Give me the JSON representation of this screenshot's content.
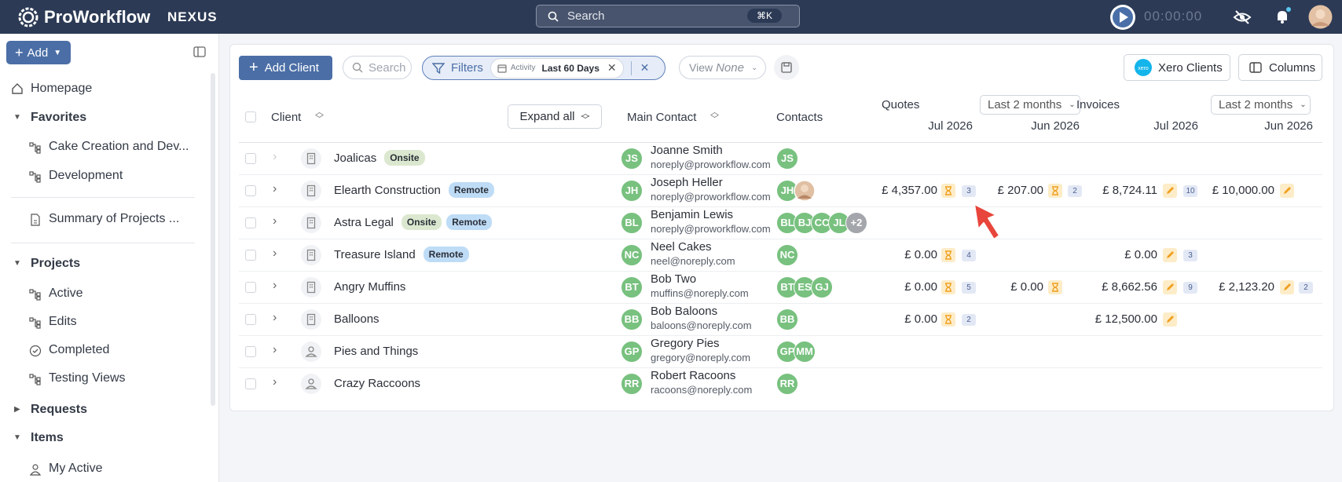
{
  "topbar": {
    "brand": "ProWorkflow",
    "product": "NEXUS",
    "search": "Search",
    "shortcut": "⌘K",
    "timer": "00:00:00"
  },
  "sidebar": {
    "add": "Add",
    "homepage": "Homepage",
    "favorites": "Favorites",
    "favorite_items": [
      "Cake Creation and Dev...",
      "Development"
    ],
    "report": "Summary of Projects ...",
    "projects": "Projects",
    "project_items": [
      "Active",
      "Edits",
      "Completed",
      "Testing Views"
    ],
    "requests": "Requests",
    "items": "Items",
    "item_items": [
      "My Active"
    ]
  },
  "toolbar": {
    "add_client": "Add Client",
    "search": "Search",
    "filters": "Filters",
    "filter_field": "Activity",
    "filter_value": "Last 60 Days",
    "view_label": "View",
    "view_value": "None",
    "xero": "Xero Clients",
    "columns": "Columns"
  },
  "table": {
    "headers": {
      "client": "Client",
      "expand": "Expand all",
      "main_contact": "Main Contact",
      "contacts": "Contacts",
      "quotes": "Quotes",
      "quotes_range": "Last 2 months",
      "invoices": "Invoices",
      "invoices_range": "Last 2 months",
      "months": [
        "Jul 2026",
        "Jun 2026",
        "Jul 2026",
        "Jun 2026"
      ]
    },
    "rows": [
      {
        "name": "Joalicas",
        "icon": "building",
        "tags": [
          "Onsite"
        ],
        "initials": "JS",
        "contact": "Joanne Smith",
        "email": "noreply@proworkflow.com",
        "contacts": [
          "JS"
        ],
        "quotes": [
          null,
          null
        ],
        "invoices": [
          null,
          null
        ]
      },
      {
        "name": "Elearth Construction",
        "icon": "building",
        "tags": [
          "Remote"
        ],
        "initials": "JH",
        "contact": "Joseph Heller",
        "email": "noreply@proworkflow.com",
        "contacts": [
          "JH"
        ],
        "quotes": [
          {
            "amount": "£ 4,357.00",
            "count": 3
          },
          {
            "amount": "£ 207.00",
            "count": 2
          }
        ],
        "invoices": [
          {
            "amount": "£ 8,724.11",
            "count": 10
          },
          {
            "amount": "£ 10,000.00"
          }
        ]
      },
      {
        "name": "Astra Legal",
        "icon": "building",
        "tags": [
          "Onsite",
          "Remote"
        ],
        "initials": "BL",
        "contact": "Benjamin Lewis",
        "email": "noreply@proworkflow.com",
        "contacts": [
          "BL",
          "BJ",
          "CC",
          "JL"
        ],
        "more": "+2",
        "quotes": [
          null,
          null
        ],
        "invoices": [
          null,
          null
        ]
      },
      {
        "name": "Treasure Island",
        "icon": "building",
        "tags": [
          "Remote"
        ],
        "initials": "NC",
        "contact": "Neel Cakes",
        "email": "neel@noreply.com",
        "contacts": [
          "NC"
        ],
        "quotes": [
          {
            "amount": "£ 0.00",
            "count": 4
          },
          null
        ],
        "invoices": [
          {
            "amount": "£ 0.00",
            "count": 3
          },
          null
        ]
      },
      {
        "name": "Angry Muffins",
        "icon": "building",
        "tags": [],
        "initials": "BT",
        "contact": "Bob Two",
        "email": "muffins@noreply.com",
        "contacts": [
          "BT",
          "ES",
          "GJ"
        ],
        "quotes": [
          {
            "amount": "£ 0.00",
            "count": 5
          },
          {
            "amount": "£ 0.00"
          }
        ],
        "invoices": [
          {
            "amount": "£ 8,662.56",
            "count": 9
          },
          {
            "amount": "£ 2,123.20",
            "count": 2
          }
        ]
      },
      {
        "name": "Balloons",
        "icon": "building",
        "tags": [],
        "initials": "BB",
        "contact": "Bob Baloons",
        "email": "baloons@noreply.com",
        "contacts": [
          "BB"
        ],
        "quotes": [
          {
            "amount": "£ 0.00",
            "count": 2
          },
          null
        ],
        "invoices": [
          {
            "amount": "£ 12,500.00"
          },
          null
        ]
      },
      {
        "name": "Pies and Things",
        "icon": "person",
        "tags": [],
        "initials": "GP",
        "contact": "Gregory Pies",
        "email": "gregory@noreply.com",
        "contacts": [
          "GP",
          "MM"
        ],
        "quotes": [
          null,
          null
        ],
        "invoices": [
          null,
          null
        ]
      },
      {
        "name": "Crazy Raccoons",
        "icon": "person",
        "tags": [],
        "initials": "RR",
        "contact": "Robert Racoons",
        "email": "racoons@noreply.com",
        "contacts": [
          "RR"
        ],
        "quotes": [
          null,
          null
        ],
        "invoices": [
          null,
          null
        ]
      }
    ]
  }
}
